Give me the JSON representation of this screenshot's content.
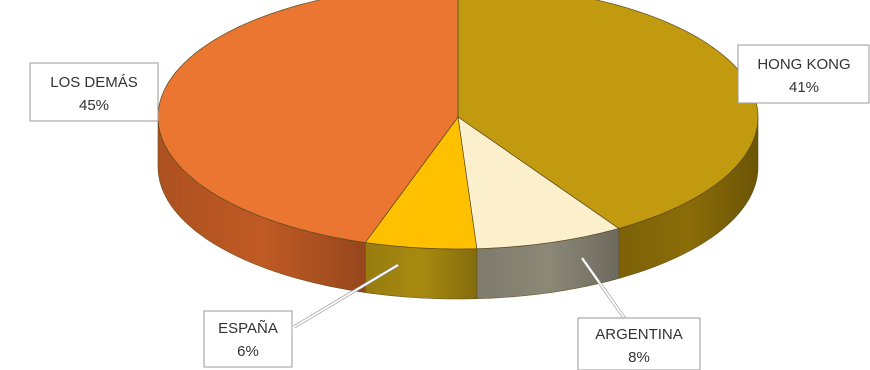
{
  "chart_data": {
    "type": "pie",
    "title": "",
    "categories": [
      "HONG KONG",
      "ARGENTINA",
      "ESPAÑA",
      "LOS DEMÁS"
    ],
    "values": [
      41,
      8,
      6,
      45
    ],
    "unit": "%",
    "labels": [
      {
        "name": "HONG KONG",
        "value": "41%"
      },
      {
        "name": "ARGENTINA",
        "value": "8%"
      },
      {
        "name": "ESPAÑA",
        "value": "6%"
      },
      {
        "name": "LOS DEMÁS",
        "value": "45%"
      }
    ],
    "colors": [
      "#c29a10",
      "#fcf0cc",
      "#ffc000",
      "#ea7632"
    ],
    "side_colors": [
      "#8a6c08",
      "#8c8878",
      "#a88a10",
      "#c05a24"
    ],
    "style": "3d-exploded-tilted",
    "legend": "none"
  }
}
